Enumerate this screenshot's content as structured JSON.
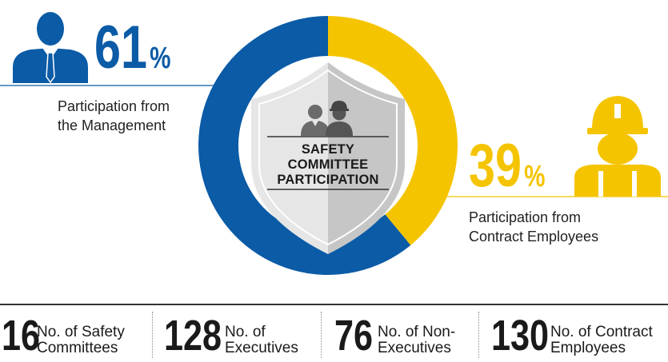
{
  "chart_data": {
    "type": "pie",
    "variant": "donut",
    "categories": [
      "Participation from the Management",
      "Participation from Contract Employees"
    ],
    "values": [
      61,
      39
    ],
    "colors": [
      "#0b5ba6",
      "#f5c400"
    ],
    "title": "SAFETY COMMITTEE PARTICIPATION"
  },
  "center": {
    "title_lines": [
      "SAFETY",
      "COMMITTEE",
      "PARTICIPATION"
    ],
    "icon": "people-icon"
  },
  "management": {
    "value": "61",
    "unit": "%",
    "label_lines": [
      "Participation from",
      "the Management"
    ],
    "icon": "businessman-icon",
    "color": "#0b5ba6"
  },
  "contract": {
    "value": "39",
    "unit": "%",
    "label_lines": [
      "Participation from",
      "Contract Employees"
    ],
    "icon": "worker-hardhat-icon",
    "color": "#f5c400"
  },
  "stats": [
    {
      "value": "16",
      "label_lines": [
        "No. of Safety",
        "Committees"
      ]
    },
    {
      "value": "128",
      "label_lines": [
        "No. of",
        "Executives"
      ]
    },
    {
      "value": "76",
      "label_lines": [
        "No. of Non-",
        "Executives"
      ]
    },
    {
      "value": "130",
      "label_lines": [
        "No. of Contract",
        "Employees"
      ]
    }
  ]
}
